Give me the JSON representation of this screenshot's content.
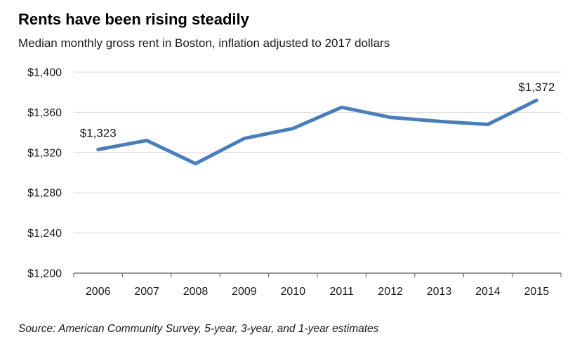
{
  "header": {
    "title": "Rents have been rising steadily",
    "subtitle": "Median monthly gross rent in Boston, inflation adjusted to 2017 dollars"
  },
  "footer": {
    "source": "Source: American Community Survey, 5-year, 3-year, and 1-year estimates"
  },
  "colors": {
    "line": "#4a7ebb",
    "grid": "#d9d9d9",
    "axis": "#737373",
    "text": "#1a1a1a"
  },
  "chart_data": {
    "type": "line",
    "title": "Rents have been rising steadily",
    "subtitle": "Median monthly gross rent in Boston, inflation adjusted to 2017 dollars",
    "source_note": "Source: American Community Survey, 5-year, 3-year, and 1-year estimates",
    "categories": [
      "2006",
      "2007",
      "2008",
      "2009",
      "2010",
      "2011",
      "2012",
      "2013",
      "2014",
      "2015"
    ],
    "series": [
      {
        "name": "Median monthly gross rent (2017 dollars)",
        "values": [
          1323,
          1332,
          1309,
          1334,
          1344,
          1365,
          1355,
          1351,
          1348,
          1372
        ]
      }
    ],
    "ylim": [
      1200,
      1400
    ],
    "ytick_step": 40,
    "ytick_labels": [
      "$1,200",
      "$1,240",
      "$1,280",
      "$1,320",
      "$1,360",
      "$1,400"
    ],
    "xlabel": "",
    "ylabel": "",
    "grid": true,
    "legend": "none",
    "point_labels": [
      {
        "index": 0,
        "text": "$1,323"
      },
      {
        "index": 9,
        "text": "$1,372"
      }
    ]
  }
}
